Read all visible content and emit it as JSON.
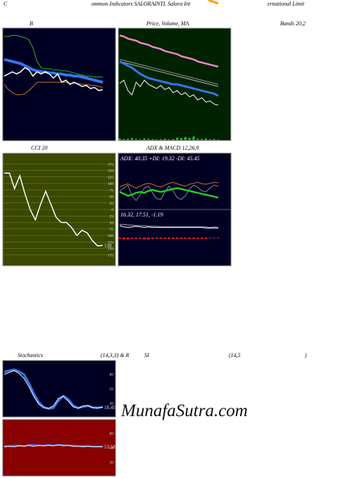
{
  "header": [
    "C",
    "ommon  Indicators SALORAINTL Salora  Int",
    "ernational Limit"
  ],
  "titles": {
    "bollinger": "B",
    "price": "Price, Volume, MA",
    "bands": "Bands 20,2",
    "cci": "CCI 20",
    "adx": "ADX  & MACD 12,26,9",
    "stoch": [
      "Stochastics",
      "(14,3,3) & R",
      "SI",
      "(14,5",
      ")"
    ]
  },
  "watermark": "MunafaSutra.com",
  "panels": [
    {
      "ylim": [
        0,
        100
      ],
      "series": [
        {
          "color": "#22bb22",
          "width": 1,
          "values": [
            96,
            96,
            97,
            97,
            96,
            95,
            93,
            85,
            72,
            66,
            65,
            65,
            64,
            64,
            63,
            63,
            62,
            61,
            60,
            59,
            58,
            58,
            57,
            57,
            57
          ]
        },
        {
          "color": "#cc7722",
          "width": 1,
          "values": [
            50,
            45,
            42,
            40,
            40,
            41,
            44,
            48,
            52,
            52,
            52,
            52,
            52,
            52,
            52,
            52,
            51,
            51,
            51,
            50,
            50,
            49,
            49,
            48,
            47
          ]
        },
        {
          "color": "#3377ee",
          "width": 4,
          "values": [
            74,
            73,
            72,
            71,
            70,
            68,
            66,
            64,
            63,
            62,
            62,
            61,
            61,
            60,
            60,
            59,
            59,
            58,
            58,
            57,
            56,
            55,
            54,
            53,
            52
          ]
        },
        {
          "color": "#ffffff",
          "width": 1.5,
          "values": [
            58,
            60,
            62,
            60,
            62,
            66,
            64,
            58,
            62,
            60,
            62,
            60,
            56,
            60,
            52,
            54,
            50,
            52,
            50,
            48,
            49,
            46,
            47,
            44,
            45
          ]
        }
      ]
    },
    {
      "ylim": [
        0,
        100
      ],
      "series": [
        {
          "color": "#22cc22",
          "style": "bar",
          "max": 100,
          "values": [
            5,
            3,
            4,
            6,
            3,
            2,
            5,
            4,
            3,
            2,
            3,
            4,
            2,
            3,
            8,
            6,
            10,
            7,
            12,
            4,
            3,
            5,
            2,
            3,
            2
          ]
        },
        {
          "color": "#999999",
          "width": 1,
          "values": [
            74,
            73,
            72,
            71,
            70,
            69,
            68,
            67,
            66,
            65,
            64,
            63,
            62,
            61,
            60,
            59,
            58,
            57,
            56,
            55,
            54,
            53,
            52,
            51,
            50
          ]
        },
        {
          "color": "#bbbbbb",
          "width": 1,
          "values": [
            72,
            71,
            70,
            69,
            68,
            67,
            66,
            65,
            64,
            63,
            62,
            61,
            60,
            59,
            58,
            57,
            56,
            55,
            54,
            53,
            52,
            51,
            50,
            49,
            48
          ]
        },
        {
          "color": "#3377ee",
          "width": 3,
          "values": [
            72,
            70,
            68,
            66,
            63,
            60,
            58,
            56,
            55,
            54,
            53,
            52,
            51,
            50,
            50,
            49,
            48,
            47,
            46,
            45,
            44,
            43,
            42,
            41,
            39
          ]
        },
        {
          "color": "#ee88cc",
          "width": 2.5,
          "values": [
            97,
            96,
            94,
            93,
            92,
            90,
            89,
            88,
            86,
            85,
            84,
            82,
            81,
            80,
            79,
            77,
            76,
            75,
            74,
            72,
            71,
            70,
            69,
            68,
            67
          ]
        },
        {
          "color": "#ffffff",
          "width": 1,
          "values": [
            51,
            54,
            44,
            40,
            52,
            48,
            54,
            50,
            48,
            46,
            49,
            45,
            47,
            42,
            44,
            40,
            42,
            38,
            40,
            35,
            37,
            33,
            34,
            31,
            30
          ]
        }
      ]
    },
    {
      "ylim": [
        -200,
        200
      ],
      "grid": true,
      "yticks": [
        175,
        150,
        125,
        100,
        75,
        50,
        25,
        0,
        {
          "value": -25,
          "label": "25"
        },
        {
          "value": -50,
          "label": "50"
        },
        {
          "value": -75,
          "label": "75"
        },
        {
          "value": -100,
          "label": "100"
        },
        {
          "value": -125,
          "label": "125"
        },
        {
          "value": -150,
          "label": "150"
        },
        {
          "value": -175,
          "label": "175"
        }
      ],
      "series": [
        {
          "color": "#ffffff",
          "width": 1.5,
          "values": [
            140,
            140,
            80,
            130,
            60,
            0,
            -40,
            20,
            70,
            20,
            -30,
            -50,
            -50,
            -70,
            -100,
            -80,
            -90,
            -120,
            -140,
            -138
          ]
        }
      ],
      "value_label": "138"
    },
    {
      "ylim": [
        0,
        100
      ],
      "text": "ADX: 40.35  +DI: 19.32  -DI: 45.45",
      "series": [
        {
          "color": "#cc7722",
          "width": 1,
          "values": [
            38,
            42,
            45,
            40,
            36,
            40,
            44,
            46,
            44,
            40,
            38,
            42,
            46,
            48,
            45,
            42,
            40,
            44,
            46,
            48,
            45,
            44,
            46,
            48,
            47
          ]
        },
        {
          "color": "#888888",
          "width": 1,
          "values": [
            30,
            36,
            42,
            20,
            10,
            22,
            36,
            40,
            26,
            14,
            12,
            28,
            40,
            30,
            16,
            12,
            20,
            34,
            42,
            38,
            30,
            28,
            36,
            42,
            40
          ]
        },
        {
          "color": "#22cc22",
          "width": 2.5,
          "values": [
            28,
            24,
            20,
            22,
            26,
            28,
            26,
            30,
            32,
            30,
            28,
            30,
            32,
            34,
            36,
            34,
            32,
            30,
            28,
            26,
            24,
            22,
            20,
            18,
            16
          ]
        }
      ]
    },
    {
      "ylim": [
        -40,
        40
      ],
      "text": "16.32,  17.51,  -1.19",
      "series": [
        {
          "color": "#ee2222",
          "style": "hist",
          "values": [
            -2,
            -3,
            -3,
            -2,
            -2,
            -2,
            -3,
            -3,
            -2,
            -2,
            -2,
            -2,
            -2,
            -2,
            -2,
            -2,
            -2,
            -2,
            -2,
            -2,
            -2,
            -2,
            -1,
            -1,
            -1
          ]
        },
        {
          "color": "#aaaaaa",
          "width": 1,
          "values": [
            22,
            22,
            21,
            21,
            20,
            20,
            20,
            19,
            19,
            19,
            18,
            18,
            18,
            18,
            18,
            18,
            18,
            18,
            18,
            18,
            18,
            18,
            17,
            18,
            17
          ]
        },
        {
          "color": "#ffffff",
          "width": 1,
          "values": [
            20,
            18,
            17,
            18,
            19,
            18,
            17,
            18,
            17,
            17,
            17,
            17,
            17,
            17,
            17,
            17,
            17,
            17,
            17,
            17,
            17,
            16,
            16,
            16,
            16
          ]
        }
      ]
    },
    {
      "ylim": [
        0,
        100
      ],
      "yticks": [
        80,
        50,
        20
      ],
      "series": [
        {
          "color": "#3377ee",
          "width": 3,
          "values": [
            85,
            88,
            90,
            86,
            80,
            62,
            40,
            22,
            12,
            8,
            10,
            25,
            35,
            28,
            15,
            10,
            12,
            14,
            11,
            10,
            12
          ]
        },
        {
          "color": "#ffffff",
          "width": 1,
          "values": [
            80,
            84,
            88,
            82,
            72,
            55,
            34,
            18,
            10,
            9,
            14,
            30,
            34,
            24,
            12,
            9,
            14,
            15,
            10,
            10,
            11
          ]
        }
      ],
      "value_label": "18.45"
    },
    {
      "ylim": [
        0,
        100
      ],
      "yticks": [
        80,
        50,
        20
      ],
      "series": [
        {
          "color": "#3377ee",
          "width": 2,
          "values": [
            54,
            54,
            55,
            55,
            54,
            56,
            56,
            55,
            55,
            56,
            55,
            56,
            56,
            55,
            55,
            54,
            54,
            54,
            53,
            53,
            53
          ]
        },
        {
          "color": "#ffffff",
          "width": 1,
          "values": [
            52,
            53,
            52,
            54,
            53,
            55,
            53,
            55,
            54,
            55,
            54,
            56,
            54,
            55,
            53,
            53,
            52,
            53,
            52,
            52,
            52
          ]
        }
      ],
      "value_label": "53.58"
    }
  ]
}
